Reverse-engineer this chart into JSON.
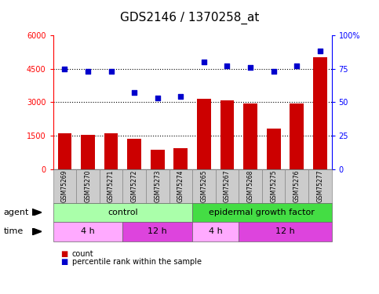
{
  "title": "GDS2146 / 1370258_at",
  "samples": [
    "GSM75269",
    "GSM75270",
    "GSM75271",
    "GSM75272",
    "GSM75273",
    "GSM75274",
    "GSM75265",
    "GSM75267",
    "GSM75268",
    "GSM75275",
    "GSM75276",
    "GSM75277"
  ],
  "counts": [
    1600,
    1530,
    1590,
    1370,
    870,
    950,
    3150,
    3080,
    2950,
    1820,
    2950,
    5000
  ],
  "percentile": [
    75,
    73,
    73,
    57,
    53,
    54,
    80,
    77,
    76,
    73,
    77,
    88
  ],
  "ylim_left": [
    0,
    6000
  ],
  "ylim_right": [
    0,
    100
  ],
  "yticks_left": [
    0,
    1500,
    3000,
    4500,
    6000
  ],
  "yticks_right": [
    0,
    25,
    50,
    75,
    100
  ],
  "bar_color": "#CC0000",
  "dot_color": "#0000CC",
  "light_green": "#AAFFAA",
  "dark_green": "#44DD44",
  "light_pink": "#FFAAFF",
  "dark_pink": "#DD44DD",
  "gray_sample": "#CCCCCC",
  "title_fontsize": 11,
  "tick_fontsize": 7,
  "panel_fontsize": 8,
  "legend_fontsize": 7,
  "n_control": 6,
  "n_egf": 6,
  "n_4h_ctrl": 3,
  "n_12h_ctrl": 3,
  "n_4h_egf": 2,
  "n_12h_egf": 4
}
